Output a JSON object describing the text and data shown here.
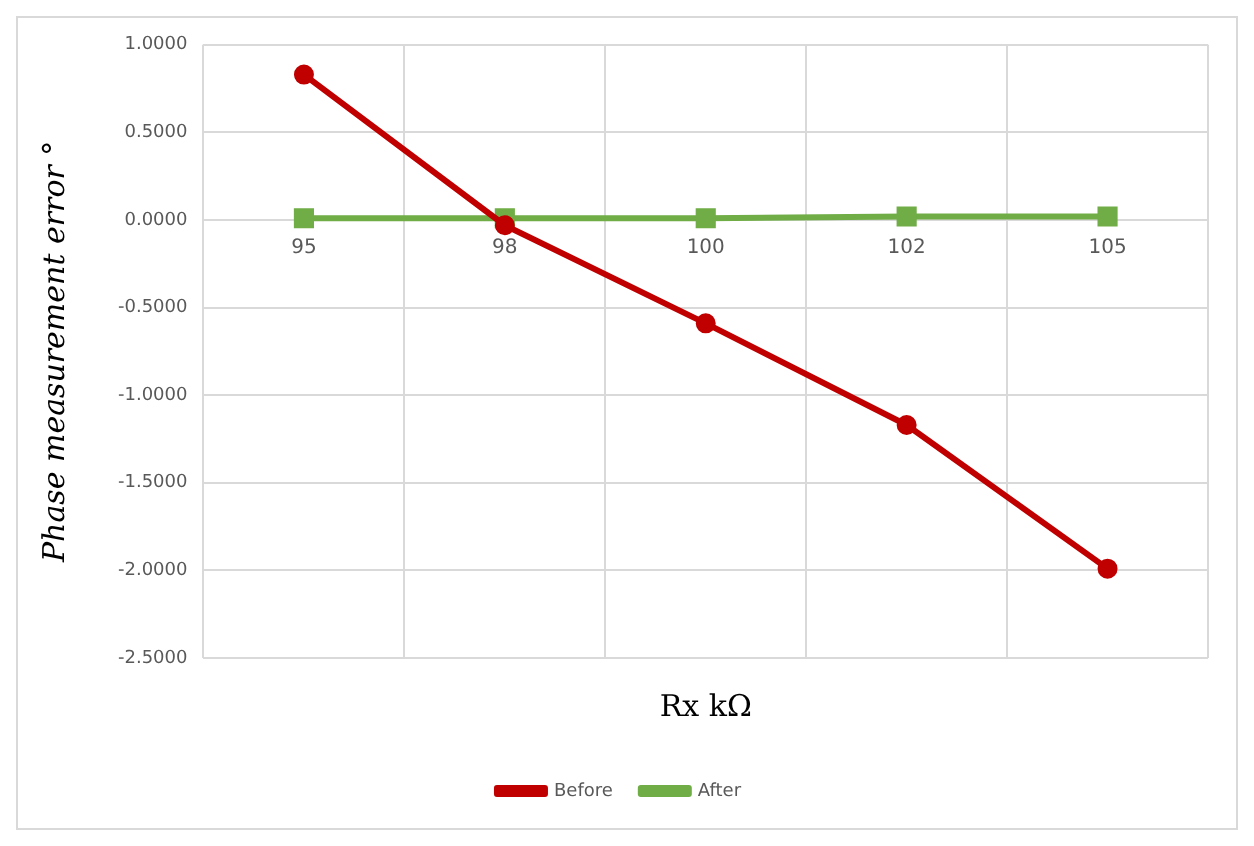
{
  "chart_data": {
    "type": "line",
    "xlabel": "Rx kΩ",
    "ylabel": "Phase measurement error °",
    "categories": [
      "95",
      "98",
      "100",
      "102",
      "105"
    ],
    "series": [
      {
        "name": "After",
        "color": "#70ad47",
        "values": [
          0.01,
          0.01,
          0.01,
          0.02,
          0.02
        ],
        "marker": "square"
      },
      {
        "name": "Before",
        "color": "#c00000",
        "values": [
          0.83,
          -0.03,
          -0.59,
          -1.17,
          -1.99
        ],
        "marker": "circle"
      }
    ],
    "ylim": [
      -2.5,
      1
    ],
    "yticks": [
      {
        "value": -2.5,
        "label": "-2.5000"
      },
      {
        "value": -2,
        "label": "-2.0000"
      },
      {
        "value": -1.5,
        "label": "-1.5000"
      },
      {
        "value": -1,
        "label": "-1.0000"
      },
      {
        "value": -0.5,
        "label": "-0.5000"
      },
      {
        "value": 0,
        "label": "0.0000"
      },
      {
        "value": 0.5,
        "label": "0.5000"
      },
      {
        "value": 1,
        "label": "1.0000"
      }
    ],
    "grid": true,
    "legend": "bottom",
    "line_style": "solid"
  }
}
